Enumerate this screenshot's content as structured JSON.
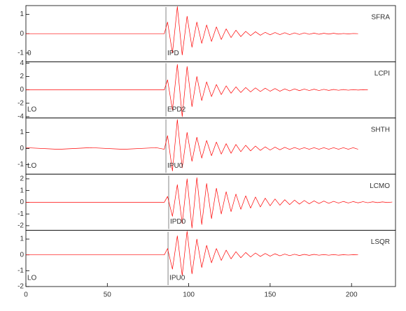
{
  "chart_data": [
    {
      "type": "line",
      "label": "SFRA",
      "phase": "IPD",
      "pick": 86,
      "marker": "0",
      "x": [
        0,
        20,
        40,
        60,
        80,
        85,
        87,
        90,
        93,
        96,
        99,
        102,
        105,
        108,
        111,
        114,
        117,
        120,
        123,
        126,
        129,
        132,
        135,
        138,
        141,
        144,
        147,
        150,
        153,
        156,
        159,
        162,
        165,
        168,
        171,
        174,
        177,
        180,
        183,
        186,
        189,
        192,
        195,
        198,
        201,
        204,
        207,
        210,
        213,
        216,
        219,
        222,
        225
      ],
      "xlim": [
        0,
        227
      ],
      "series": [
        {
          "color": "#ff0000",
          "values": [
            0,
            0,
            0,
            0,
            0,
            0,
            0.6,
            -1.0,
            1.4,
            -1.1,
            0.9,
            -0.7,
            0.6,
            -0.5,
            0.45,
            -0.4,
            0.35,
            -0.3,
            0.25,
            -0.2,
            0.18,
            -0.15,
            0.12,
            -0.1,
            0.1,
            -0.08,
            0.07,
            -0.06,
            0.06,
            -0.05,
            0.05,
            -0.05,
            0.04,
            -0.04,
            0.04,
            -0.03,
            0.03,
            -0.03,
            0.02,
            -0.02,
            0.02,
            -0.02,
            0.01,
            -0.01,
            0.01,
            0,
            null,
            null,
            null,
            null,
            null,
            null,
            null
          ]
        }
      ],
      "ylim": [
        -1.45,
        1.45
      ],
      "yticks": [
        -1,
        0,
        1
      ]
    },
    {
      "type": "line",
      "label": "LCPI",
      "phase": "EPD2",
      "pick": 86,
      "marker": "LO",
      "x": [
        0,
        20,
        40,
        60,
        80,
        85,
        87,
        90,
        93,
        96,
        99,
        102,
        105,
        108,
        111,
        114,
        117,
        120,
        123,
        126,
        129,
        132,
        135,
        138,
        141,
        144,
        147,
        150,
        153,
        156,
        159,
        162,
        165,
        168,
        171,
        174,
        177,
        180,
        183,
        186,
        189,
        192,
        195,
        198,
        201,
        204,
        207,
        210,
        213,
        216,
        219,
        222,
        225
      ],
      "xlim": [
        0,
        227
      ],
      "series": [
        {
          "color": "#ff0000",
          "values": [
            0,
            0,
            0,
            0,
            0,
            0,
            1.5,
            -3.0,
            3.8,
            -4.0,
            3.5,
            -2.5,
            2.0,
            -1.6,
            1.2,
            -1.0,
            0.8,
            -0.7,
            0.6,
            -0.5,
            0.45,
            -0.4,
            0.35,
            -0.3,
            0.3,
            -0.25,
            0.25,
            -0.2,
            0.2,
            -0.2,
            0.15,
            -0.15,
            0.15,
            -0.12,
            0.12,
            -0.1,
            0.1,
            -0.1,
            0.08,
            -0.08,
            0.06,
            -0.06,
            0.05,
            -0.05,
            0.04,
            -0.03,
            0.02,
            0,
            null,
            null,
            null,
            null,
            null
          ]
        }
      ],
      "ylim": [
        -4.2,
        4.2
      ],
      "yticks": [
        -4,
        -2,
        0,
        2,
        4
      ]
    },
    {
      "type": "line",
      "label": "SHTH",
      "phase": "IPU0",
      "pick": 86,
      "marker": "LO",
      "x": [
        0,
        20,
        40,
        60,
        80,
        85,
        87,
        90,
        93,
        96,
        99,
        102,
        105,
        108,
        111,
        114,
        117,
        120,
        123,
        126,
        129,
        132,
        135,
        138,
        141,
        144,
        147,
        150,
        153,
        156,
        159,
        162,
        165,
        168,
        171,
        174,
        177,
        180,
        183,
        186,
        189,
        192,
        195,
        198,
        201,
        204,
        207,
        210,
        213,
        216,
        219,
        222,
        225
      ],
      "xlim": [
        0,
        227
      ],
      "series": [
        {
          "color": "#ff0000",
          "values": [
            0.05,
            -0.05,
            0.05,
            -0.05,
            0.05,
            -0.05,
            0.8,
            -1.4,
            1.8,
            -1.2,
            1.0,
            -0.8,
            0.7,
            -0.6,
            0.5,
            -0.45,
            0.4,
            -0.35,
            0.3,
            -0.3,
            0.25,
            -0.2,
            0.2,
            -0.15,
            0.15,
            -0.12,
            0.1,
            -0.1,
            0.08,
            -0.08,
            0.07,
            -0.06,
            0.06,
            -0.05,
            0.05,
            -0.05,
            0.05,
            -0.05,
            0.05,
            -0.05,
            0.05,
            -0.05,
            0.05,
            -0.05,
            0.05,
            -0.05,
            null,
            null,
            null,
            null,
            null,
            null,
            null
          ]
        }
      ],
      "ylim": [
        -1.6,
        1.9
      ],
      "yticks": [
        -1,
        0,
        1
      ]
    },
    {
      "type": "line",
      "label": "LCMO",
      "phase": "IPD0",
      "pick": 87.7,
      "marker": "",
      "x": [
        0,
        20,
        40,
        60,
        80,
        85,
        87,
        90,
        93,
        96,
        99,
        102,
        105,
        108,
        111,
        114,
        117,
        120,
        123,
        126,
        129,
        132,
        135,
        138,
        141,
        144,
        147,
        150,
        153,
        156,
        159,
        162,
        165,
        168,
        171,
        174,
        177,
        180,
        183,
        186,
        189,
        192,
        195,
        198,
        201,
        204,
        207,
        210,
        213,
        216,
        219,
        222,
        225
      ],
      "xlim": [
        0,
        227
      ],
      "series": [
        {
          "color": "#ff0000",
          "values": [
            0,
            0,
            0,
            0,
            0,
            0,
            0.5,
            -1.2,
            1.5,
            -1.8,
            2.0,
            -2.2,
            2.1,
            -1.9,
            1.6,
            -1.4,
            1.2,
            -1.0,
            0.9,
            -0.8,
            0.7,
            -0.6,
            0.55,
            -0.5,
            0.45,
            -0.4,
            0.35,
            -0.3,
            0.28,
            -0.25,
            0.22,
            -0.2,
            0.18,
            -0.16,
            0.15,
            -0.13,
            0.12,
            -0.11,
            0.1,
            -0.09,
            0.08,
            -0.07,
            0.07,
            -0.06,
            0.06,
            -0.05,
            0.05,
            -0.04,
            0.04,
            -0.03,
            0.03,
            -0.02,
            0.02
          ]
        }
      ],
      "ylim": [
        -2.4,
        2.4
      ],
      "yticks": [
        -2,
        -1,
        0,
        1,
        2
      ]
    },
    {
      "type": "line",
      "label": "LSQR",
      "phase": "IPU0",
      "pick": 87.3,
      "marker": "LO",
      "x": [
        0,
        20,
        40,
        60,
        80,
        85,
        87,
        90,
        93,
        96,
        99,
        102,
        105,
        108,
        111,
        114,
        117,
        120,
        123,
        126,
        129,
        132,
        135,
        138,
        141,
        144,
        147,
        150,
        153,
        156,
        159,
        162,
        165,
        168,
        171,
        174,
        177,
        180,
        183,
        186,
        189,
        192,
        195,
        198,
        201,
        204,
        207,
        210,
        213,
        216,
        219,
        222,
        225
      ],
      "xlim": [
        0,
        227
      ],
      "xticks": [
        0,
        50,
        100,
        150,
        200
      ],
      "series": [
        {
          "color": "#ff0000",
          "values": [
            0,
            0,
            0,
            0,
            0,
            0,
            0.4,
            -0.9,
            1.2,
            -1.3,
            1.5,
            -1.2,
            1.0,
            -0.8,
            0.6,
            -0.5,
            0.4,
            -0.35,
            0.3,
            -0.25,
            0.2,
            -0.18,
            0.15,
            -0.13,
            0.12,
            -0.1,
            0.09,
            -0.08,
            0.07,
            -0.06,
            0.05,
            -0.05,
            0.04,
            -0.04,
            0.03,
            -0.03,
            0.03,
            -0.02,
            0.02,
            -0.02,
            0.02,
            -0.02,
            0.01,
            -0.01,
            0.01,
            0,
            null,
            null,
            null,
            null,
            null,
            null,
            null
          ]
        }
      ],
      "ylim": [
        -2,
        1.55
      ],
      "yticks": [
        -2,
        -1,
        0,
        1
      ]
    }
  ]
}
